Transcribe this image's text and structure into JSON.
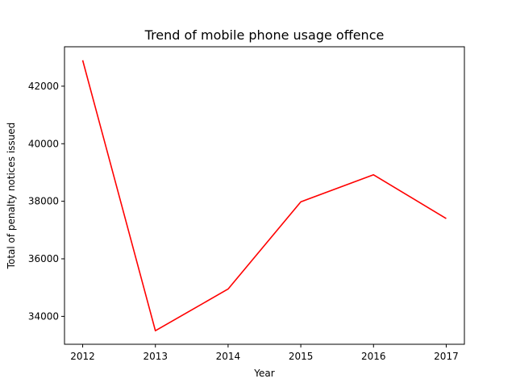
{
  "chart_data": {
    "type": "line",
    "title": "Trend of mobile phone usage offence",
    "xlabel": "Year",
    "ylabel": "Total of penalty notices issued",
    "x": [
      2012,
      2013,
      2014,
      2015,
      2016,
      2017
    ],
    "series": [
      {
        "values": [
          42900,
          33500,
          34950,
          37980,
          38920,
          37400
        ],
        "color": "#ff0000"
      }
    ],
    "xticks": [
      "2012",
      "2013",
      "2014",
      "2015",
      "2016",
      "2017"
    ],
    "yticks": [
      34000,
      36000,
      38000,
      40000,
      42000
    ],
    "ytick_labels": [
      "34000",
      "36000",
      "38000",
      "40000",
      "42000"
    ],
    "xlim": [
      2011.75,
      2017.25
    ],
    "ylim": [
      33030,
      43370
    ],
    "grid": false,
    "legend": false
  }
}
